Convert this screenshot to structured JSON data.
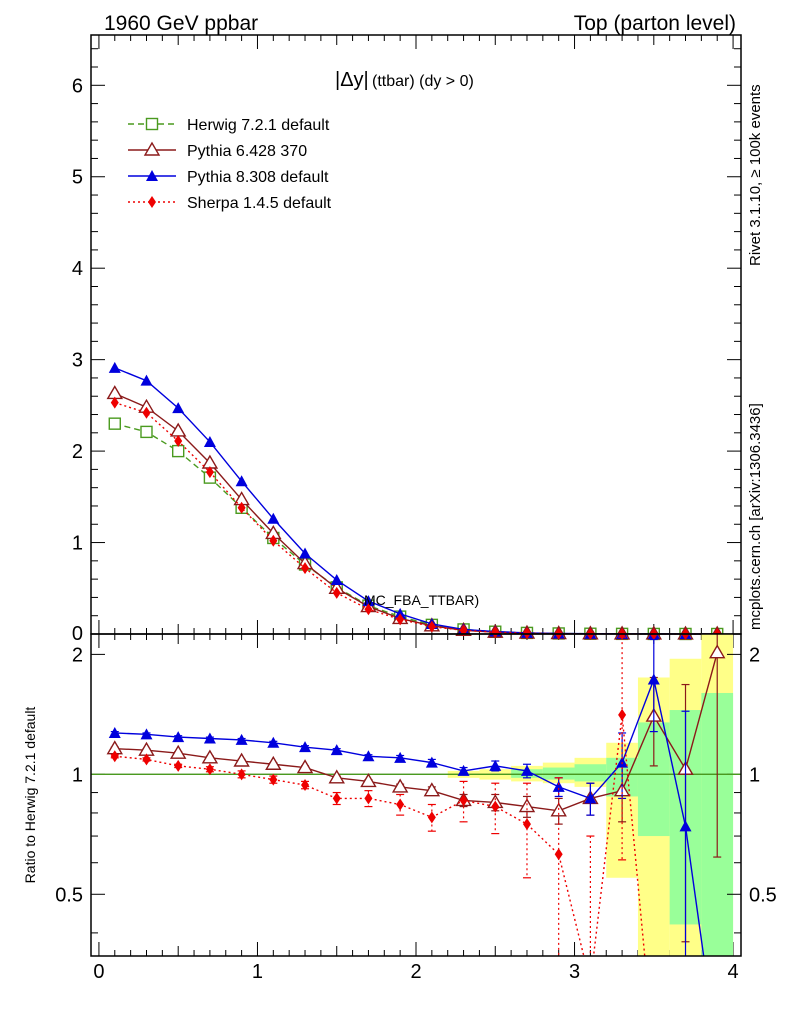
{
  "chart_data": {
    "type": "line",
    "header_left": "1960 GeV ppbar",
    "header_right": "Top (parton level)",
    "title_main": "|Δy|",
    "title_sub": " (ttbar) (dy > 0)",
    "side_label_top": "Rivet 3.1.10, ≥ 100k events",
    "side_label_bottom": "mcplots.cern.ch [arXiv:1306.3436]",
    "watermark": "MC_FBA_TTBAR)",
    "ratio_ylabel": "Ratio to Herwig 7.2.1 default",
    "colors": {
      "herwig": "#4a9a1f",
      "pythia6": "#8b1a1a",
      "pythia8": "#0000dd",
      "sherpa": "#ee0000",
      "band_yellow": "#ffff88",
      "band_green": "#99ff99"
    },
    "top_yticks": [
      "1",
      "2",
      "3",
      "4",
      "5",
      "6"
    ],
    "top_zero_label": "0",
    "ratio_yticks": [
      "0.5",
      "1",
      "2"
    ],
    "xticks": [
      "0",
      "1",
      "2",
      "3",
      "4"
    ],
    "x": [
      0.1,
      0.3,
      0.5,
      0.7,
      0.9,
      1.1,
      1.3,
      1.5,
      1.7,
      1.9,
      2.1,
      2.3,
      2.5,
      2.7,
      2.9,
      3.1,
      3.3,
      3.5,
      3.7,
      3.9
    ],
    "xlim": [
      -0.05,
      4.05
    ],
    "ylim_top": [
      0,
      6.55
    ],
    "ylim_ratio": [
      0.35,
      2.25
    ],
    "series": [
      {
        "key": "herwig",
        "name": "Herwig 7.2.1 default",
        "marker": "open-square",
        "dash": "6,4",
        "values": [
          2.3,
          2.21,
          2.0,
          1.71,
          1.38,
          1.05,
          0.76,
          0.51,
          0.31,
          0.19,
          0.1,
          0.05,
          0.025,
          0.012,
          0.006,
          0.003,
          0.0015,
          0.0008,
          0.0004,
          0.0002
        ],
        "ratio": [
          1,
          1,
          1,
          1,
          1,
          1,
          1,
          1,
          1,
          1,
          1,
          1,
          1,
          1,
          1,
          1,
          1,
          1,
          1,
          1
        ]
      },
      {
        "key": "pythia6",
        "name": "Pythia 6.428 370",
        "marker": "open-triangle",
        "dash": "",
        "values": [
          2.63,
          2.48,
          2.22,
          1.87,
          1.47,
          1.1,
          0.77,
          0.5,
          0.3,
          0.17,
          0.09,
          0.04,
          0.02,
          0.01,
          0.005,
          0.0025,
          0.0012,
          0.0011,
          0.0004,
          0.0004
        ],
        "ratio": [
          1.16,
          1.15,
          1.13,
          1.1,
          1.08,
          1.06,
          1.04,
          0.98,
          0.96,
          0.93,
          0.91,
          0.86,
          0.85,
          0.83,
          0.81,
          0.87,
          0.91,
          1.4,
          1.03,
          2.02
        ],
        "ratio_err": [
          0.01,
          0.01,
          0.01,
          0.01,
          0.01,
          0.01,
          0.01,
          0.01,
          0.01,
          0.015,
          0.02,
          0.03,
          0.04,
          0.05,
          0.06,
          0.08,
          0.15,
          0.35,
          0.65,
          1.4
        ]
      },
      {
        "key": "pythia8",
        "name": "Pythia 8.308 default",
        "marker": "filled-triangle",
        "dash": "",
        "values": [
          2.91,
          2.77,
          2.47,
          2.1,
          1.67,
          1.26,
          0.88,
          0.59,
          0.36,
          0.22,
          0.11,
          0.05,
          0.027,
          0.012,
          0.0056,
          0.0026,
          0.0016,
          0.0014,
          0.0003,
          0.0001
        ],
        "ratio": [
          1.27,
          1.26,
          1.24,
          1.23,
          1.22,
          1.2,
          1.17,
          1.15,
          1.11,
          1.1,
          1.07,
          1.02,
          1.05,
          1.02,
          0.93,
          0.87,
          1.07,
          1.73,
          0.74,
          0.0
        ],
        "ratio_err": [
          0.01,
          0.01,
          0.01,
          0.01,
          0.01,
          0.01,
          0.01,
          0.01,
          0.01,
          0.015,
          0.02,
          0.02,
          0.03,
          0.04,
          0.05,
          0.08,
          0.2,
          0.45,
          0.7,
          0
        ]
      },
      {
        "key": "sherpa",
        "name": "Sherpa 1.4.5 default",
        "marker": "filled-diamond",
        "dash": "2,3",
        "values": [
          2.53,
          2.42,
          2.11,
          1.77,
          1.38,
          1.02,
          0.72,
          0.45,
          0.27,
          0.16,
          0.08,
          0.04,
          0.02,
          0.009,
          0.004,
          0.0015,
          0.002,
          0.0002,
          0.0001,
          0.0001
        ],
        "ratio": [
          1.11,
          1.09,
          1.05,
          1.03,
          1.0,
          0.97,
          0.94,
          0.87,
          0.87,
          0.84,
          0.78,
          0.86,
          0.83,
          0.75,
          0.63,
          0.3,
          1.41,
          0.0,
          0.0,
          0.0
        ],
        "ratio_err": [
          0.01,
          0.01,
          0.01,
          0.015,
          0.02,
          0.02,
          0.02,
          0.03,
          0.04,
          0.05,
          0.06,
          0.1,
          0.12,
          0.2,
          0.35,
          0.4,
          0.8,
          0,
          0,
          0
        ]
      }
    ],
    "ratio_band_yellow": [
      {
        "x0": 2.2,
        "x1": 2.4,
        "lo": 0.98,
        "hi": 1.02
      },
      {
        "x0": 2.4,
        "x1": 2.6,
        "lo": 0.97,
        "hi": 1.03
      },
      {
        "x0": 2.6,
        "x1": 2.8,
        "lo": 0.96,
        "hi": 1.05
      },
      {
        "x0": 2.8,
        "x1": 3.0,
        "lo": 0.95,
        "hi": 1.07
      },
      {
        "x0": 3.0,
        "x1": 3.2,
        "lo": 0.93,
        "hi": 1.1
      },
      {
        "x0": 3.2,
        "x1": 3.4,
        "lo": 0.55,
        "hi": 1.2
      },
      {
        "x0": 3.4,
        "x1": 3.6,
        "lo": 0.35,
        "hi": 1.75
      },
      {
        "x0": 3.6,
        "x1": 3.8,
        "lo": 0.35,
        "hi": 1.95
      },
      {
        "x0": 3.8,
        "x1": 4.0,
        "lo": 0.35,
        "hi": 2.25
      }
    ],
    "ratio_band_green": [
      {
        "x0": 2.6,
        "x1": 2.8,
        "lo": 0.98,
        "hi": 1.03
      },
      {
        "x0": 2.8,
        "x1": 3.0,
        "lo": 0.97,
        "hi": 1.04
      },
      {
        "x0": 3.0,
        "x1": 3.2,
        "lo": 0.96,
        "hi": 1.06
      },
      {
        "x0": 3.2,
        "x1": 3.4,
        "lo": 0.88,
        "hi": 1.1
      },
      {
        "x0": 3.4,
        "x1": 3.6,
        "lo": 0.7,
        "hi": 1.35
      },
      {
        "x0": 3.6,
        "x1": 3.8,
        "lo": 0.42,
        "hi": 1.45
      },
      {
        "x0": 3.8,
        "x1": 4.0,
        "lo": 0.35,
        "hi": 1.6
      }
    ]
  }
}
